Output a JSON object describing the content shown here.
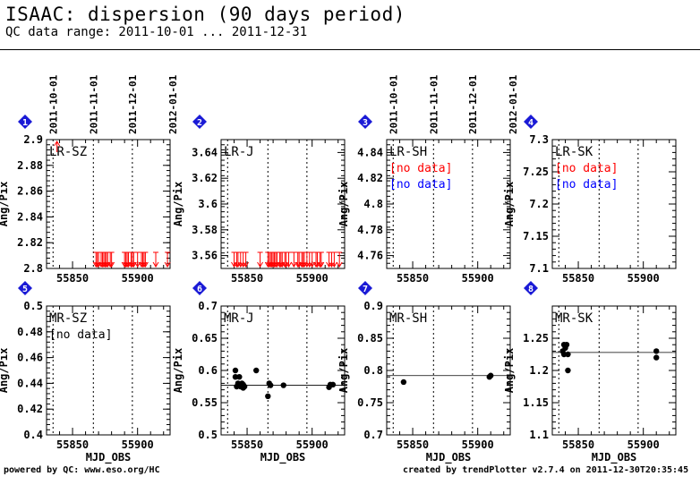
{
  "header": {
    "title": "ISAAC: dispersion (90 days period)",
    "subtitle": "QC data range: 2011-10-01 ... 2011-12-31"
  },
  "footer": {
    "left": "powered by QC: www.eso.org/HC",
    "right": "created by trendPlotter v2.7.4 on 2011-12-30T20:35:45"
  },
  "colors": {
    "marker_badge": "#1a1ad6",
    "no_data_red": "#ff0000",
    "no_data_blue": "#0000ff",
    "outlier": "#ff0000",
    "point": "#000000"
  },
  "chart_data": [
    {
      "panel": "1",
      "label": "LR-SZ",
      "type": "scatter",
      "ylabel": "Ang/Pix",
      "ylim": [
        2.8,
        2.9
      ],
      "yticks": [
        "2.8",
        "2.82",
        "2.84",
        "2.86",
        "2.88",
        "2.9"
      ],
      "xlim": [
        55830,
        55925
      ],
      "xticks": [
        "55850",
        "55900"
      ],
      "date_labels": [
        "2011-10-01",
        "2011-11-01",
        "2011-12-01",
        "2012-01-01"
      ],
      "date_mjd": [
        55835,
        55866,
        55896,
        55927
      ],
      "no_data": [],
      "points": [],
      "outliers_low": [
        55868,
        55869,
        55870,
        55872,
        55873,
        55874,
        55875,
        55876,
        55877,
        55879,
        55880,
        55890,
        55891,
        55892,
        55893,
        55895,
        55896,
        55897,
        55900,
        55903,
        55904,
        55905,
        55906,
        55914,
        55923
      ],
      "outliers_high": [
        55838
      ]
    },
    {
      "panel": "2",
      "label": "LR-J",
      "type": "scatter",
      "ylabel": "Ang/Pix",
      "ylim": [
        3.55,
        3.65
      ],
      "yticks": [
        "3.56",
        "3.58",
        "3.6",
        "3.62",
        "3.64"
      ],
      "xlim": [
        55830,
        55925
      ],
      "xticks": [
        "55850",
        "55900"
      ],
      "no_data": [],
      "points": [],
      "outliers_low": [
        55840,
        55842,
        55843,
        55845,
        55847,
        55849,
        55860,
        55866,
        55867,
        55868,
        55869,
        55870,
        55871,
        55872,
        55873,
        55875,
        55876,
        55877,
        55879,
        55880,
        55882,
        55886,
        55889,
        55890,
        55892,
        55893,
        55894,
        55896,
        55898,
        55900,
        55903,
        55904,
        55906,
        55907,
        55913,
        55915,
        55917,
        55921
      ],
      "outliers_high": []
    },
    {
      "panel": "3",
      "label": "LR-SH",
      "type": "scatter",
      "ylabel": "Ang/Pix",
      "ylim": [
        4.75,
        4.85
      ],
      "yticks": [
        "4.76",
        "4.78",
        "4.8",
        "4.82",
        "4.84"
      ],
      "xlim": [
        55830,
        55925
      ],
      "xticks": [
        "55850",
        "55900"
      ],
      "date_labels": [
        "2011-10-01",
        "2011-11-01",
        "2011-12-01",
        "2012-01-01"
      ],
      "date_mjd": [
        55835,
        55866,
        55896,
        55927
      ],
      "no_data": [
        {
          "text": "[no data]",
          "color": "#ff0000"
        },
        {
          "text": "[no data]",
          "color": "#0000ff"
        }
      ],
      "points": [],
      "outliers_low": [],
      "outliers_high": []
    },
    {
      "panel": "4",
      "label": "LR-SK",
      "type": "scatter",
      "ylabel": "Ang/Pix",
      "ylim": [
        7.1,
        7.3
      ],
      "yticks": [
        "7.1",
        "7.15",
        "7.2",
        "7.25",
        "7.3"
      ],
      "xlim": [
        55830,
        55925
      ],
      "xticks": [
        "55850",
        "55900"
      ],
      "no_data": [
        {
          "text": "[no data]",
          "color": "#ff0000"
        },
        {
          "text": "[no data]",
          "color": "#0000ff"
        }
      ],
      "points": [],
      "outliers_low": [],
      "outliers_high": []
    },
    {
      "panel": "5",
      "label": "MR-SZ",
      "type": "scatter",
      "ylabel": "Ang/Pix",
      "ylim": [
        0.4,
        0.5
      ],
      "yticks": [
        "0.4",
        "0.42",
        "0.44",
        "0.46",
        "0.48",
        "0.5"
      ],
      "xlim": [
        55830,
        55925
      ],
      "xticks": [
        "55850",
        "55900"
      ],
      "xlabel": "MJD_OBS",
      "no_data": [
        {
          "text": "[no data]",
          "color": "#000000"
        }
      ],
      "points": [],
      "outliers_low": [],
      "outliers_high": []
    },
    {
      "panel": "6",
      "label": "MR-J",
      "type": "scatter",
      "ylabel": "Ang/Pix",
      "ylim": [
        0.5,
        0.7
      ],
      "yticks": [
        "0.5",
        "0.55",
        "0.6",
        "0.65",
        "0.7"
      ],
      "xlim": [
        55830,
        55925
      ],
      "xticks": [
        "55850",
        "55900"
      ],
      "xlabel": "MJD_OBS",
      "reference_line": 0.577,
      "no_data": [],
      "points": [
        [
          55841,
          0.59
        ],
        [
          55841,
          0.6
        ],
        [
          55842,
          0.575
        ],
        [
          55843,
          0.58
        ],
        [
          55844,
          0.59
        ],
        [
          55845,
          0.575
        ],
        [
          55846,
          0.58
        ],
        [
          55847,
          0.578
        ],
        [
          55847,
          0.573
        ],
        [
          55848,
          0.575
        ],
        [
          55857,
          0.6
        ],
        [
          55866,
          0.56
        ],
        [
          55867,
          0.58
        ],
        [
          55868,
          0.577
        ],
        [
          55878,
          0.577
        ],
        [
          55913,
          0.574
        ],
        [
          55914,
          0.578
        ],
        [
          55916,
          0.578
        ]
      ],
      "outliers_low": [],
      "outliers_high": []
    },
    {
      "panel": "7",
      "label": "MR-SH",
      "type": "scatter",
      "ylabel": "Ang/Pix",
      "ylim": [
        0.7,
        0.9
      ],
      "yticks": [
        "0.7",
        "0.75",
        "0.8",
        "0.85",
        "0.9"
      ],
      "xlim": [
        55830,
        55925
      ],
      "xticks": [
        "55850",
        "55900"
      ],
      "xlabel": "MJD_OBS",
      "reference_line": 0.792,
      "no_data": [],
      "points": [
        [
          55843,
          0.782
        ],
        [
          55909,
          0.79
        ],
        [
          55910,
          0.792
        ]
      ],
      "outliers_low": [],
      "outliers_high": []
    },
    {
      "panel": "8",
      "label": "MR-SK",
      "type": "scatter",
      "ylabel": "Ang/Pix",
      "ylim": [
        1.1,
        1.3
      ],
      "yticks": [
        "1.1",
        "1.15",
        "1.2",
        "1.25"
      ],
      "xlim": [
        55830,
        55925
      ],
      "xticks": [
        "55850",
        "55900"
      ],
      "xlabel": "MJD_OBS",
      "reference_line": 1.228,
      "no_data": [],
      "points": [
        [
          55838,
          1.23
        ],
        [
          55839,
          1.24
        ],
        [
          55839,
          1.225
        ],
        [
          55840,
          1.235
        ],
        [
          55841,
          1.24
        ],
        [
          55842,
          1.225
        ],
        [
          55842,
          1.2
        ],
        [
          55910,
          1.22
        ],
        [
          55910,
          1.23
        ]
      ],
      "outliers_low": [],
      "outliers_high": []
    }
  ]
}
